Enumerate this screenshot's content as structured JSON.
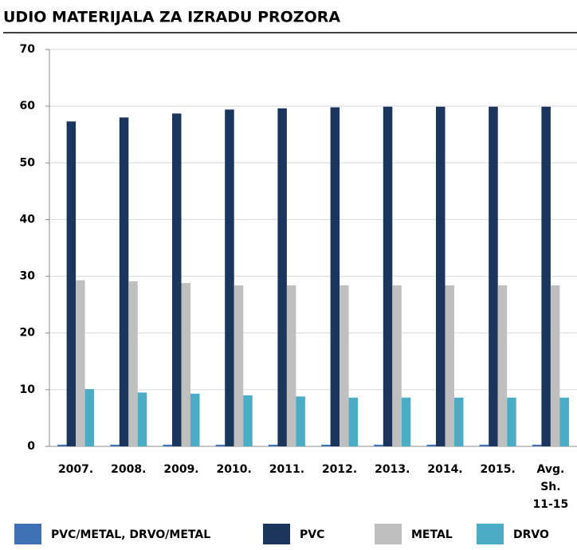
{
  "chart_data": {
    "type": "bar",
    "title": "UDIO MATERIJALA ZA IZRADU PROZORA",
    "categories": [
      "2007.",
      "2008.",
      "2009.",
      "2010.",
      "2011.",
      "2012.",
      "2013.",
      "2014.",
      "2015.",
      "Avg. Sh. 11-15"
    ],
    "series": [
      {
        "name": "PVC/METAL, DRVO/METAL",
        "color": "#3f72b5",
        "values": [
          0.3,
          0.3,
          0.3,
          0.3,
          0.3,
          0.3,
          0.3,
          0.3,
          0.3,
          0.3
        ]
      },
      {
        "name": "PVC",
        "color": "#1b365d",
        "values": [
          57.3,
          58.0,
          58.7,
          59.4,
          59.6,
          59.8,
          59.9,
          59.9,
          59.9,
          59.9
        ]
      },
      {
        "name": "METAL",
        "color": "#bfbfbf",
        "values": [
          29.3,
          29.1,
          28.8,
          28.4,
          28.4,
          28.4,
          28.4,
          28.4,
          28.4,
          28.4
        ]
      },
      {
        "name": "DRVO",
        "color": "#4bacc6",
        "values": [
          10.1,
          9.5,
          9.3,
          9.0,
          8.8,
          8.6,
          8.6,
          8.6,
          8.6,
          8.6
        ]
      }
    ],
    "ylim": [
      0,
      70
    ],
    "yticks": [
      0,
      10,
      20,
      30,
      40,
      50,
      60,
      70
    ],
    "grid": true
  }
}
